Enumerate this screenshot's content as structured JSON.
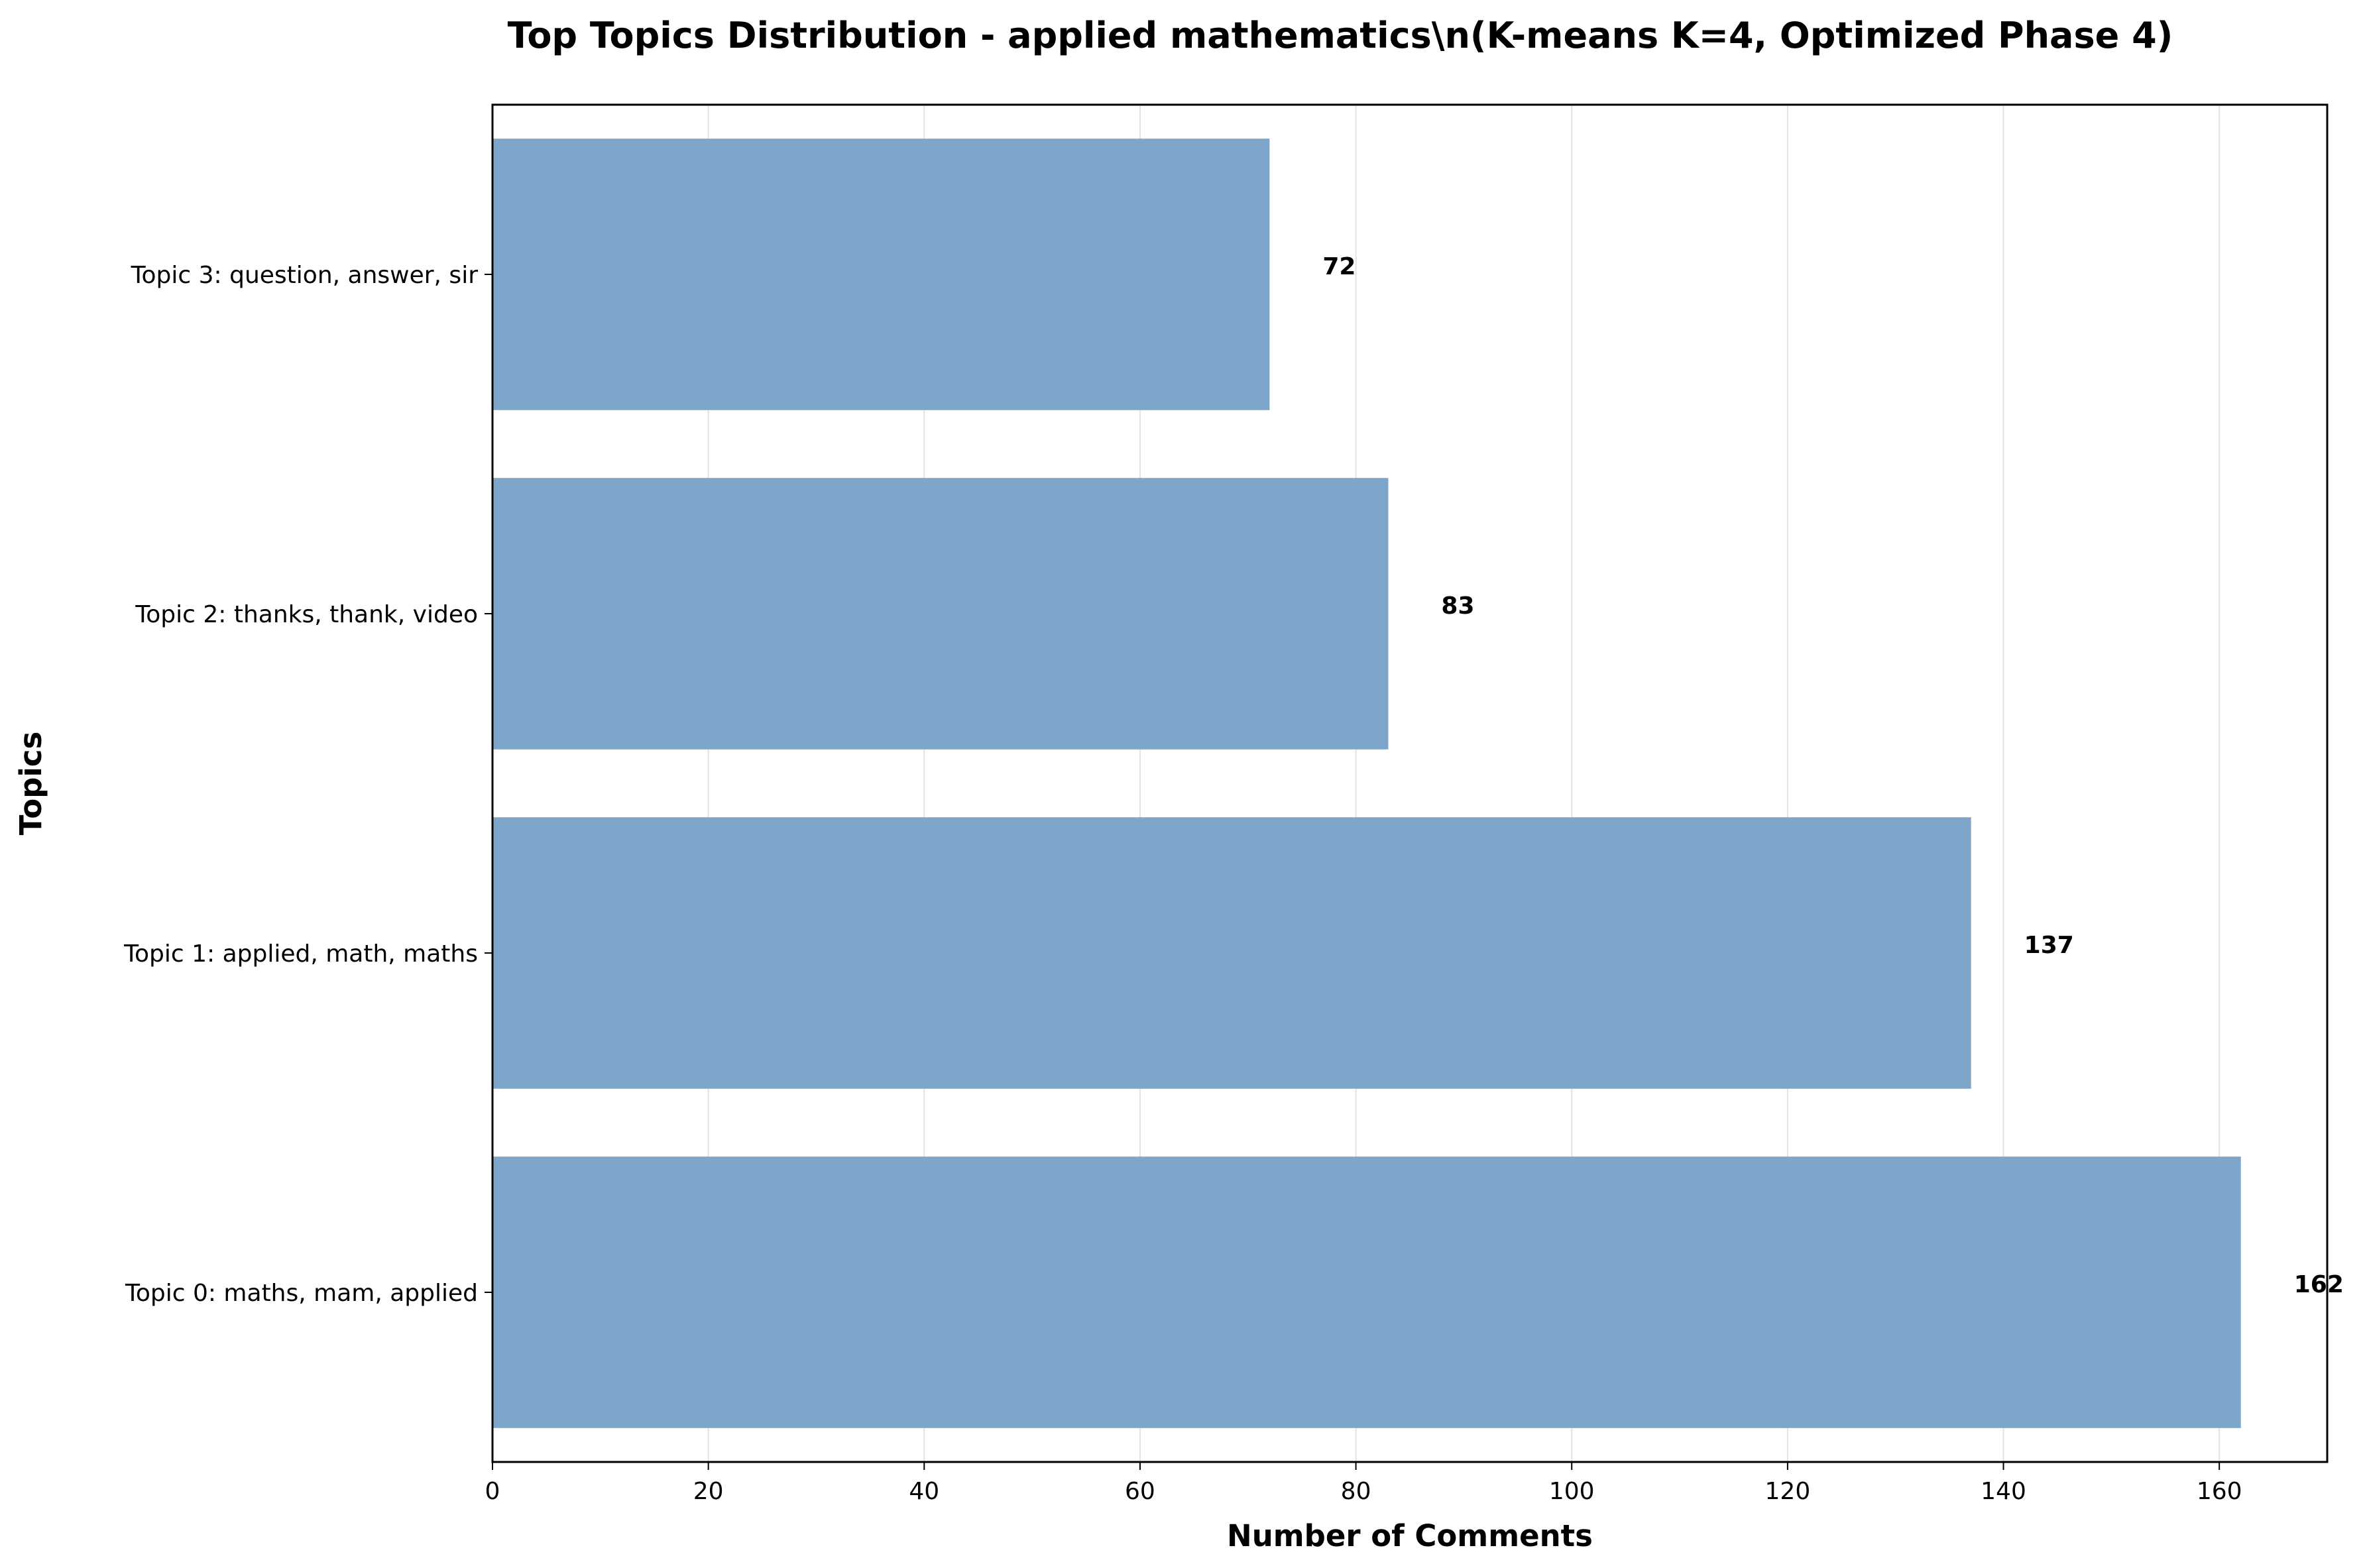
{
  "chart_data": {
    "type": "bar",
    "orientation": "horizontal",
    "title": "Top Topics Distribution - applied mathematics\\n(K-means K=4, Optimized Phase 4)",
    "xlabel": "Number of Comments",
    "ylabel": "Topics",
    "categories": [
      "Topic 0: maths, mam, applied",
      "Topic 1: applied, math, maths",
      "Topic 2: thanks, thank, video",
      "Topic 3: question, answer, sir"
    ],
    "values": [
      162,
      137,
      83,
      72
    ],
    "value_labels": [
      "162",
      "137",
      "83",
      "72"
    ],
    "xlim": [
      0,
      170
    ],
    "xticks": [
      0,
      20,
      40,
      60,
      80,
      100,
      120,
      140,
      160
    ],
    "xtick_labels": [
      "0",
      "20",
      "40",
      "60",
      "80",
      "100",
      "120",
      "140",
      "160"
    ],
    "grid": "x-axis vertical lines",
    "bar_color": "#7ea6ca"
  }
}
